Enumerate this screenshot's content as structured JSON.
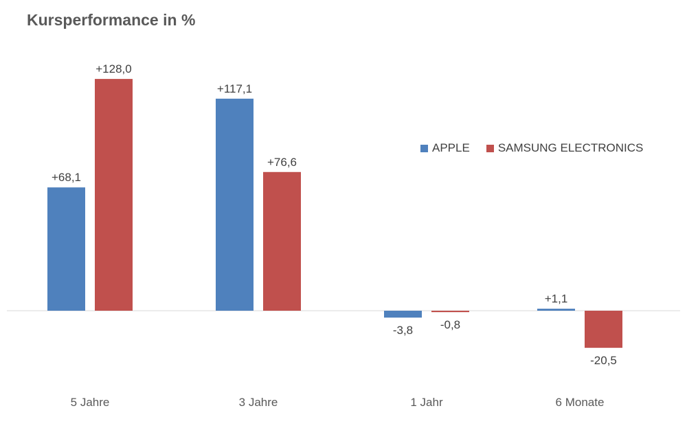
{
  "chart_data": {
    "type": "bar",
    "title": "Kursperformance in %",
    "categories": [
      "5 Jahre",
      "3 Jahre",
      "1 Jahr",
      "6 Monate"
    ],
    "series": [
      {
        "name": "APPLE",
        "color": "#4f81bd",
        "values": [
          68.1,
          117.1,
          -3.8,
          1.1
        ],
        "labels": [
          "+68,1",
          "+117,1",
          "-3,8",
          "+1,1"
        ]
      },
      {
        "name": "SAMSUNG ELECTRONICS",
        "color": "#c0504d",
        "values": [
          128.0,
          76.6,
          -0.8,
          -20.5
        ],
        "labels": [
          "+128,0",
          "+76,6",
          "-0,8",
          "-20,5"
        ]
      }
    ],
    "legend_position": "right",
    "grid": false
  }
}
